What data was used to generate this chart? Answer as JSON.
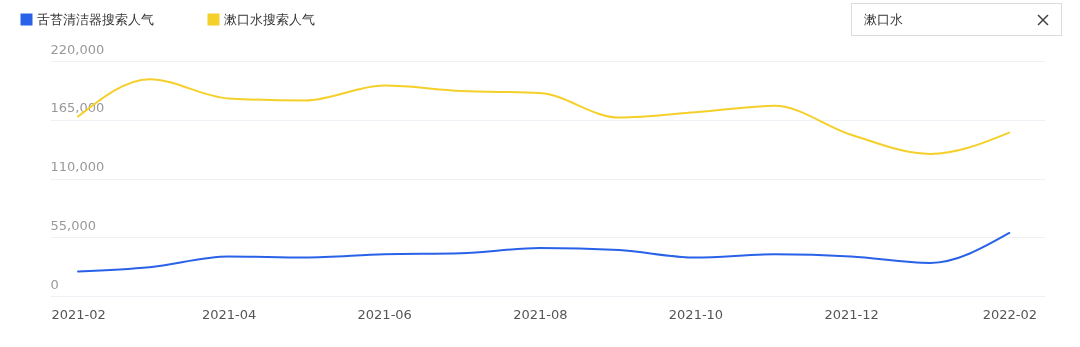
{
  "chart_data": {
    "type": "line",
    "x": [
      "2021-02",
      "2021-03",
      "2021-04",
      "2021-05",
      "2021-06",
      "2021-07",
      "2021-08",
      "2021-09",
      "2021-10",
      "2021-11",
      "2021-12",
      "2022-01",
      "2022-02"
    ],
    "series": [
      {
        "name": "舌苔清洁器搜索人气",
        "color": "#2962e8",
        "values": [
          23000,
          27000,
          37000,
          36000,
          39000,
          40000,
          45000,
          43000,
          36000,
          39000,
          37000,
          31000,
          59000
        ]
      },
      {
        "name": "漱口水搜索人气",
        "color": "#f5cf2a",
        "values": [
          168000,
          203000,
          185000,
          183000,
          197000,
          192000,
          190000,
          167000,
          172000,
          178000,
          151000,
          133000,
          153000
        ]
      }
    ],
    "xlim": [
      "2021-01-21",
      "2022-02-15"
    ],
    "xticks": [
      "2021-02",
      "2021-04",
      "2021-06",
      "2021-08",
      "2021-10",
      "2021-12",
      "2022-02"
    ],
    "ylim": [
      0,
      220000
    ],
    "yticks": [
      0,
      {
        "value": 55000,
        "label": "55,000"
      },
      {
        "value": 110000,
        "label": "110,000"
      },
      {
        "value": 165000,
        "label": "165,000"
      },
      {
        "value": 220000,
        "label": "220,000"
      }
    ],
    "grid": "y",
    "legend": "top left",
    "marker": "none",
    "line_style": "solid",
    "annotations": [
      "漱口水"
    ]
  }
}
